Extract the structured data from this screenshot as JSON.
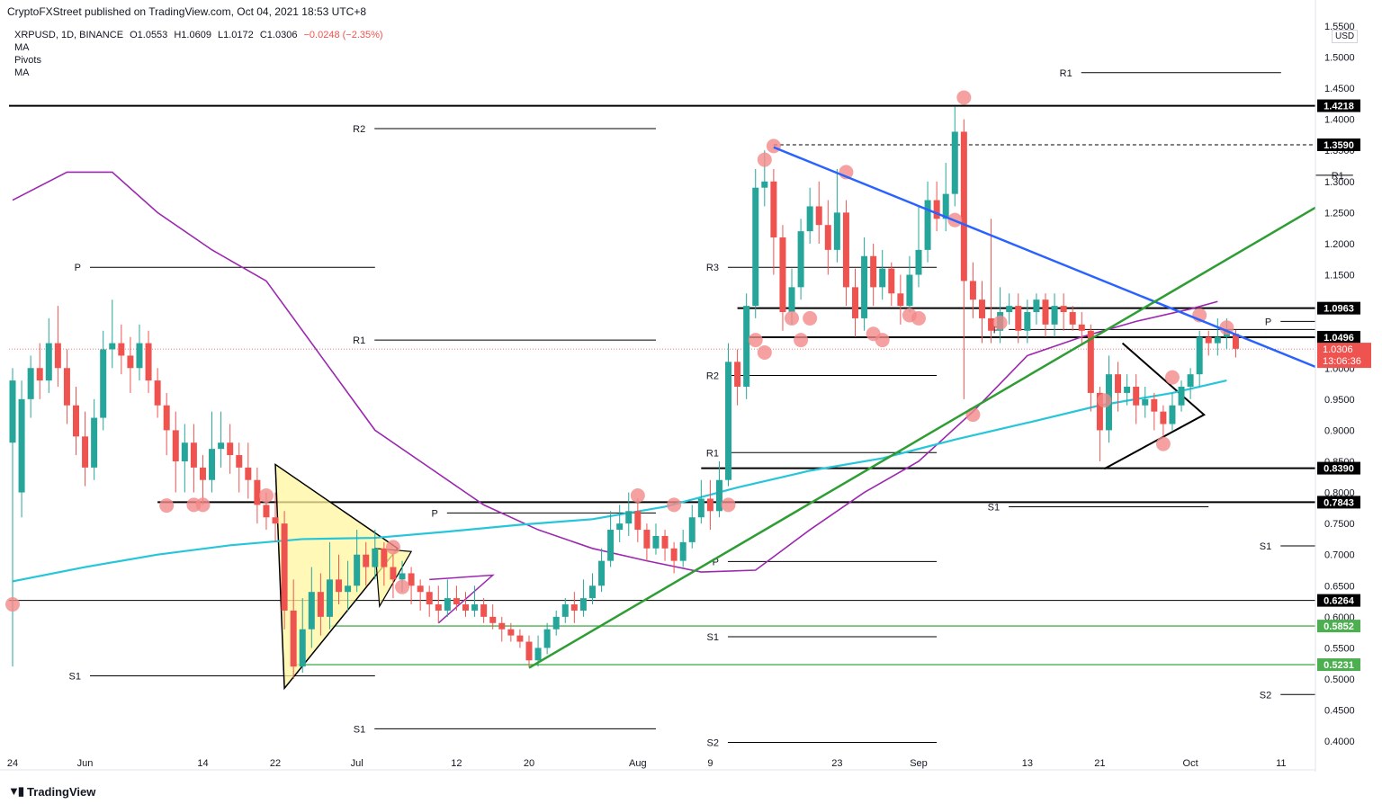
{
  "header": {
    "published": "CryptoFXStreet published on TradingView.com, Oct 04, 2021 18:53 UTC+8",
    "symbol": "XRPUSD, 1D, BINANCE",
    "open": "O1.0553",
    "high": "H1.0609",
    "low": "L1.0172",
    "close": "C1.0306",
    "change": "−0.0248 (−2.35%)",
    "indicators": [
      "MA",
      "Pivots",
      "MA"
    ]
  },
  "footer": {
    "logo_text": "TradingView"
  },
  "currency_label": "USD",
  "colors": {
    "up": "#26a69a",
    "down": "#ef5350",
    "ma_fast": "#9c27b0",
    "ma_slow": "#26c6da",
    "trend_blue": "#2962ff",
    "trend_green": "#2e9d34",
    "support_green": "#4caf50",
    "marker": "#f48a8a",
    "pennant_fill": "#fff59d",
    "wedge_purple": "#9c27b0"
  },
  "chart_data": {
    "type": "candlestick",
    "price_axis": {
      "min": 0.38,
      "max": 1.56,
      "ticks": [
        "1.5500",
        "1.5000",
        "1.4500",
        "1.4000",
        "1.3500",
        "1.3000",
        "1.2500",
        "1.2000",
        "1.1500",
        "1.1000",
        "1.0500",
        "1.0000",
        "0.9500",
        "0.9000",
        "0.8500",
        "0.8000",
        "0.7500",
        "0.7000",
        "0.6500",
        "0.6000",
        "0.5500",
        "0.5000",
        "0.4500",
        "0.4000"
      ]
    },
    "time_axis": {
      "ticks": [
        {
          "label": "24",
          "i": 0
        },
        {
          "label": "Jun",
          "i": 8
        },
        {
          "label": "14",
          "i": 21
        },
        {
          "label": "22",
          "i": 29
        },
        {
          "label": "Jul",
          "i": 38
        },
        {
          "label": "12",
          "i": 49
        },
        {
          "label": "20",
          "i": 57
        },
        {
          "label": "Aug",
          "i": 69
        },
        {
          "label": "9",
          "i": 77
        },
        {
          "label": "23",
          "i": 91
        },
        {
          "label": "Sep",
          "i": 100
        },
        {
          "label": "13",
          "i": 112
        },
        {
          "label": "21",
          "i": 120
        },
        {
          "label": "Oct",
          "i": 130
        },
        {
          "label": "11",
          "i": 140
        }
      ]
    },
    "candles": [
      [
        0.88,
        0.98,
        1.0,
        0.52
      ],
      [
        0.8,
        0.95,
        0.98,
        0.76
      ],
      [
        0.95,
        1.0,
        1.02,
        0.92
      ],
      [
        1.0,
        0.98,
        1.04,
        0.95
      ],
      [
        0.98,
        1.04,
        1.08,
        0.96
      ],
      [
        1.04,
        1.0,
        1.1,
        0.97
      ],
      [
        1.0,
        0.94,
        1.03,
        0.91
      ],
      [
        0.94,
        0.89,
        0.97,
        0.86
      ],
      [
        0.89,
        0.84,
        0.93,
        0.81
      ],
      [
        0.84,
        0.92,
        0.95,
        0.82
      ],
      [
        0.92,
        1.03,
        1.06,
        0.9
      ],
      [
        1.03,
        1.04,
        1.11,
        1.0
      ],
      [
        1.04,
        1.02,
        1.07,
        0.99
      ],
      [
        1.02,
        1.0,
        1.05,
        0.96
      ],
      [
        1.0,
        1.04,
        1.07,
        0.98
      ],
      [
        1.04,
        0.98,
        1.06,
        0.96
      ],
      [
        0.98,
        0.94,
        1.0,
        0.92
      ],
      [
        0.94,
        0.9,
        0.96,
        0.86
      ],
      [
        0.9,
        0.85,
        0.93,
        0.8
      ],
      [
        0.85,
        0.88,
        0.91,
        0.8
      ],
      [
        0.88,
        0.84,
        0.91,
        0.8
      ],
      [
        0.84,
        0.82,
        0.86,
        0.78
      ],
      [
        0.82,
        0.87,
        0.93,
        0.8
      ],
      [
        0.87,
        0.88,
        0.93,
        0.84
      ],
      [
        0.88,
        0.86,
        0.91,
        0.83
      ],
      [
        0.86,
        0.84,
        0.88,
        0.8
      ],
      [
        0.84,
        0.82,
        0.88,
        0.79
      ],
      [
        0.82,
        0.78,
        0.84,
        0.75
      ],
      [
        0.78,
        0.76,
        0.8,
        0.74
      ],
      [
        0.76,
        0.75,
        0.8,
        0.72
      ],
      [
        0.75,
        0.61,
        0.77,
        0.58
      ],
      [
        0.61,
        0.52,
        0.66,
        0.5
      ],
      [
        0.52,
        0.58,
        0.63,
        0.51
      ],
      [
        0.58,
        0.64,
        0.68,
        0.55
      ],
      [
        0.64,
        0.6,
        0.67,
        0.57
      ],
      [
        0.6,
        0.66,
        0.72,
        0.58
      ],
      [
        0.66,
        0.64,
        0.7,
        0.62
      ],
      [
        0.64,
        0.65,
        0.69,
        0.61
      ],
      [
        0.65,
        0.7,
        0.74,
        0.64
      ],
      [
        0.7,
        0.68,
        0.72,
        0.65
      ],
      [
        0.68,
        0.71,
        0.74,
        0.66
      ],
      [
        0.71,
        0.68,
        0.72,
        0.65
      ],
      [
        0.68,
        0.66,
        0.7,
        0.63
      ],
      [
        0.66,
        0.67,
        0.69,
        0.64
      ],
      [
        0.67,
        0.65,
        0.68,
        0.62
      ],
      [
        0.65,
        0.64,
        0.66,
        0.61
      ],
      [
        0.64,
        0.62,
        0.65,
        0.6
      ],
      [
        0.62,
        0.61,
        0.65,
        0.59
      ],
      [
        0.61,
        0.63,
        0.66,
        0.6
      ],
      [
        0.63,
        0.62,
        0.65,
        0.61
      ],
      [
        0.62,
        0.61,
        0.64,
        0.6
      ],
      [
        0.61,
        0.62,
        0.65,
        0.6
      ],
      [
        0.62,
        0.6,
        0.63,
        0.59
      ],
      [
        0.6,
        0.59,
        0.62,
        0.58
      ],
      [
        0.59,
        0.58,
        0.6,
        0.56
      ],
      [
        0.58,
        0.57,
        0.59,
        0.56
      ],
      [
        0.57,
        0.56,
        0.58,
        0.55
      ],
      [
        0.56,
        0.53,
        0.57,
        0.52
      ],
      [
        0.53,
        0.55,
        0.57,
        0.52
      ],
      [
        0.55,
        0.58,
        0.59,
        0.54
      ],
      [
        0.58,
        0.6,
        0.61,
        0.57
      ],
      [
        0.6,
        0.62,
        0.63,
        0.59
      ],
      [
        0.62,
        0.61,
        0.64,
        0.59
      ],
      [
        0.61,
        0.63,
        0.66,
        0.6
      ],
      [
        0.63,
        0.65,
        0.67,
        0.62
      ],
      [
        0.65,
        0.69,
        0.71,
        0.64
      ],
      [
        0.69,
        0.74,
        0.77,
        0.68
      ],
      [
        0.74,
        0.75,
        0.78,
        0.72
      ],
      [
        0.75,
        0.77,
        0.8,
        0.73
      ],
      [
        0.77,
        0.74,
        0.79,
        0.72
      ],
      [
        0.74,
        0.71,
        0.75,
        0.69
      ],
      [
        0.71,
        0.73,
        0.75,
        0.7
      ],
      [
        0.73,
        0.71,
        0.74,
        0.69
      ],
      [
        0.71,
        0.69,
        0.72,
        0.67
      ],
      [
        0.69,
        0.72,
        0.74,
        0.68
      ],
      [
        0.72,
        0.76,
        0.78,
        0.71
      ],
      [
        0.76,
        0.79,
        0.82,
        0.75
      ],
      [
        0.79,
        0.77,
        0.82,
        0.74
      ],
      [
        0.77,
        0.82,
        0.85,
        0.76
      ],
      [
        0.82,
        1.01,
        1.04,
        0.81
      ],
      [
        1.01,
        0.97,
        1.03,
        0.94
      ],
      [
        0.97,
        1.1,
        1.12,
        0.95
      ],
      [
        1.1,
        1.29,
        1.32,
        1.08
      ],
      [
        1.29,
        1.3,
        1.35,
        1.26
      ],
      [
        1.3,
        1.21,
        1.32,
        1.15
      ],
      [
        1.21,
        1.09,
        1.23,
        1.06
      ],
      [
        1.09,
        1.13,
        1.16,
        1.07
      ],
      [
        1.13,
        1.22,
        1.24,
        1.11
      ],
      [
        1.22,
        1.26,
        1.29,
        1.2
      ],
      [
        1.26,
        1.23,
        1.3,
        1.2
      ],
      [
        1.23,
        1.19,
        1.27,
        1.15
      ],
      [
        1.19,
        1.25,
        1.32,
        1.17
      ],
      [
        1.25,
        1.13,
        1.27,
        1.1
      ],
      [
        1.13,
        1.08,
        1.16,
        1.05
      ],
      [
        1.08,
        1.18,
        1.21,
        1.06
      ],
      [
        1.18,
        1.13,
        1.2,
        1.1
      ],
      [
        1.13,
        1.16,
        1.19,
        1.11
      ],
      [
        1.16,
        1.12,
        1.17,
        1.1
      ],
      [
        1.12,
        1.1,
        1.15,
        1.07
      ],
      [
        1.1,
        1.15,
        1.18,
        1.09
      ],
      [
        1.15,
        1.19,
        1.26,
        1.13
      ],
      [
        1.19,
        1.27,
        1.3,
        1.17
      ],
      [
        1.27,
        1.24,
        1.3,
        1.22
      ],
      [
        1.24,
        1.28,
        1.33,
        1.22
      ],
      [
        1.28,
        1.38,
        1.42,
        1.26
      ],
      [
        1.38,
        1.14,
        1.4,
        0.95
      ],
      [
        1.14,
        1.11,
        1.17,
        1.08
      ],
      [
        1.11,
        1.08,
        1.14,
        1.04
      ],
      [
        1.08,
        1.06,
        1.24,
        1.04
      ],
      [
        1.06,
        1.09,
        1.13,
        1.04
      ],
      [
        1.09,
        1.1,
        1.12,
        1.07
      ],
      [
        1.1,
        1.06,
        1.12,
        1.04
      ],
      [
        1.06,
        1.09,
        1.11,
        1.04
      ],
      [
        1.09,
        1.11,
        1.12,
        1.07
      ],
      [
        1.11,
        1.07,
        1.12,
        1.05
      ],
      [
        1.07,
        1.1,
        1.12,
        1.05
      ],
      [
        1.1,
        1.09,
        1.12,
        1.06
      ],
      [
        1.09,
        1.07,
        1.1,
        1.06
      ],
      [
        1.07,
        1.06,
        1.09,
        1.04
      ],
      [
        1.06,
        0.96,
        1.07,
        0.93
      ],
      [
        0.96,
        0.9,
        0.97,
        0.85
      ],
      [
        0.9,
        0.99,
        1.02,
        0.88
      ],
      [
        0.99,
        0.96,
        1.01,
        0.93
      ],
      [
        0.96,
        0.97,
        0.99,
        0.94
      ],
      [
        0.97,
        0.94,
        0.99,
        0.91
      ],
      [
        0.94,
        0.95,
        0.97,
        0.92
      ],
      [
        0.95,
        0.93,
        0.96,
        0.9
      ],
      [
        0.93,
        0.91,
        0.94,
        0.89
      ],
      [
        0.91,
        0.94,
        0.96,
        0.9
      ],
      [
        0.94,
        0.97,
        0.98,
        0.93
      ],
      [
        0.97,
        0.99,
        1.0,
        0.95
      ],
      [
        0.99,
        1.05,
        1.06,
        0.97
      ],
      [
        1.05,
        1.04,
        1.06,
        1.02
      ],
      [
        1.04,
        1.05,
        1.08,
        1.02
      ],
      [
        1.05,
        1.06,
        1.08,
        1.03
      ],
      [
        1.055,
        1.031,
        1.061,
        1.017
      ]
    ],
    "horizontal_levels": [
      {
        "value": 1.4218,
        "label": "1.4218"
      },
      {
        "value": 1.359,
        "label": "1.3590"
      },
      {
        "value": 1.0963,
        "label": "1.0963"
      },
      {
        "value": 1.0496,
        "label": "1.0496"
      },
      {
        "value": 0.839,
        "label": "0.8390"
      },
      {
        "value": 0.7843,
        "label": "0.7843"
      },
      {
        "value": 0.6264,
        "label": "0.6264"
      },
      {
        "value": 0.5852,
        "label": "0.5852"
      },
      {
        "value": 0.5231,
        "label": "0.5231"
      }
    ],
    "last_price": {
      "value": 1.0306,
      "label": "1.0306",
      "countdown": "13:06:36"
    },
    "pivot_labels": [
      {
        "label": "R1",
        "price": 1.475,
        "i0": 110,
        "i1": 140
      },
      {
        "label": "R1",
        "price": 1.31,
        "i0": 140,
        "i1": 150
      },
      {
        "label": "R2",
        "price": 1.385,
        "i0": 32,
        "i1": 71
      },
      {
        "label": "P",
        "price": 1.162,
        "i0": 0,
        "i1": 40
      },
      {
        "label": "R1",
        "price": 1.045,
        "i0": 32,
        "i1": 71
      },
      {
        "label": "R3",
        "price": 1.162,
        "i0": 71,
        "i1": 102
      },
      {
        "label": "R2",
        "price": 0.988,
        "i0": 71,
        "i1": 102
      },
      {
        "label": "R1",
        "price": 0.864,
        "i0": 71,
        "i1": 102
      },
      {
        "label": "P",
        "price": 1.062,
        "i0": 102,
        "i1": 150
      },
      {
        "label": "P",
        "price": 1.075,
        "i0": 132,
        "i1": 150
      },
      {
        "label": "S1",
        "price": 0.777,
        "i0": 102,
        "i1": 132
      },
      {
        "label": "S1",
        "price": 0.714,
        "i0": 132,
        "i1": 150
      },
      {
        "label": "P",
        "price": 0.767,
        "i0": 40,
        "i1": 71
      },
      {
        "label": "P",
        "price": 0.689,
        "i0": 71,
        "i1": 102
      },
      {
        "label": "S1",
        "price": 0.568,
        "i0": 71,
        "i1": 102
      },
      {
        "label": "S1",
        "price": 0.505,
        "i0": 0,
        "i1": 40
      },
      {
        "label": "S1",
        "price": 0.42,
        "i0": 32,
        "i1": 71
      },
      {
        "label": "S2",
        "price": 0.398,
        "i0": 71,
        "i1": 102
      },
      {
        "label": "S2",
        "price": 0.475,
        "i0": 132,
        "i1": 150
      }
    ]
  }
}
